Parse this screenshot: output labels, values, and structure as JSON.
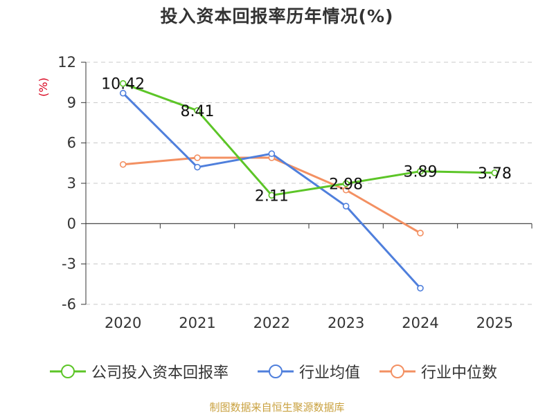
{
  "title": "投入资本回报率历年情况(%)",
  "source": "制图数据来自恒生聚源数据库",
  "colors": {
    "company": "#5cc527",
    "industry_avg": "#4f7fdc",
    "industry_median": "#f39062",
    "axis_unit": "#d9001b",
    "grid": "#c8c8c8",
    "axis": "#333333",
    "source": "#c9a13f"
  },
  "legend": [
    {
      "label": "公司投入资本回报率",
      "color": "#5cc527"
    },
    {
      "label": "行业均值",
      "color": "#4f7fdc"
    },
    {
      "label": "行业中位数",
      "color": "#f39062"
    }
  ],
  "chart_data": {
    "type": "line",
    "title": "投入资本回报率历年情况(%)",
    "ylabel": "(%)",
    "xlabel": "",
    "categories": [
      "2020",
      "2021",
      "2022",
      "2023",
      "2024",
      "2025"
    ],
    "ylim": [
      -6,
      12
    ],
    "yticks": [
      12,
      9,
      6,
      3,
      0,
      -3,
      -6
    ],
    "grid": true,
    "legend_position": "bottom",
    "series": [
      {
        "name": "公司投入资本回报率",
        "color": "#5cc527",
        "values": [
          10.42,
          8.41,
          2.11,
          2.98,
          3.89,
          3.78
        ],
        "labels": [
          "10.42",
          "8.41",
          "2.11",
          "2.98",
          "3.89",
          "3.78"
        ]
      },
      {
        "name": "行业均值",
        "color": "#4f7fdc",
        "values": [
          9.7,
          4.2,
          5.2,
          1.3,
          -4.8,
          null
        ]
      },
      {
        "name": "行业中位数",
        "color": "#f39062",
        "values": [
          4.4,
          4.9,
          4.9,
          2.5,
          -0.7,
          null
        ]
      }
    ]
  }
}
